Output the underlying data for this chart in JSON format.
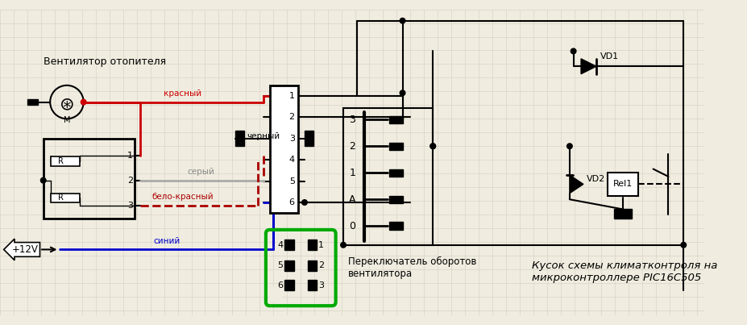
{
  "bg_color": "#f0ede0",
  "grid_color": "#d8d5c8",
  "title_text": "Кусок схемы климатконтроля на\nмикроконтроллере PIC16C505",
  "label_ventilator": "Вентилятор отопителя",
  "label_12v": "+12V",
  "label_red": "красный",
  "label_black": "черный",
  "label_gray": "серый",
  "label_white_red": "бело-красный",
  "label_blue": "синий",
  "label_switch": "Переключатель оборотов\nвентилятора",
  "label_vd1": "VD1",
  "label_vd2": "VD2",
  "label_rel1": "Rel1"
}
